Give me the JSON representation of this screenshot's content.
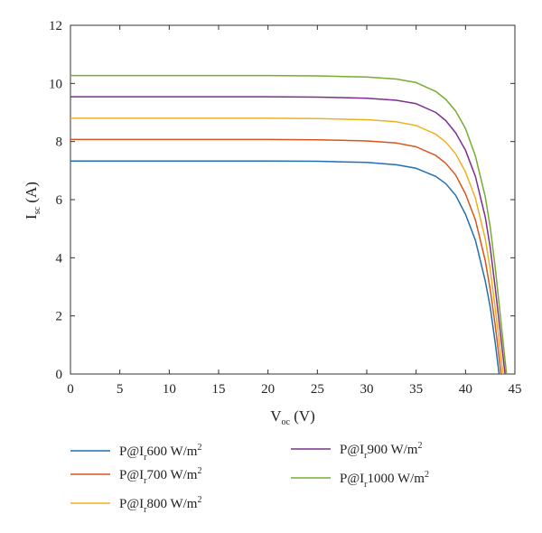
{
  "chart_data": {
    "type": "line",
    "xlabel": {
      "main": "V",
      "sub": "oc",
      "unit": " (V)"
    },
    "ylabel": {
      "main": "I",
      "sub": "sc",
      "unit": " (A)"
    },
    "xlim": [
      0,
      45
    ],
    "ylim": [
      0,
      12
    ],
    "xticks": [
      0,
      5,
      10,
      15,
      20,
      25,
      30,
      35,
      40,
      45
    ],
    "yticks": [
      0,
      2,
      4,
      6,
      8,
      10,
      12
    ],
    "grid": false,
    "legend_position": "bottom",
    "series": [
      {
        "name": "P@Ir600 W/m²",
        "label_pre": "P@I",
        "label_sub": "r",
        "label_post": "600 W/m",
        "label_sup": "2",
        "color": "#1f6fb2",
        "isc": 7.33,
        "voc": 43.4,
        "x": [
          0,
          10,
          20,
          25,
          30,
          33,
          35,
          37,
          38,
          39,
          40,
          41,
          42,
          42.5,
          43,
          43.4
        ],
        "y": [
          7.33,
          7.33,
          7.33,
          7.32,
          7.28,
          7.2,
          7.08,
          6.8,
          6.55,
          6.15,
          5.5,
          4.6,
          3.2,
          2.3,
          1.1,
          0
        ]
      },
      {
        "name": "P@Ir700 W/m²",
        "label_pre": "P@I",
        "label_sub": "r",
        "label_post": "700 W/m",
        "label_sup": "2",
        "color": "#d9541a",
        "isc": 8.07,
        "voc": 43.6,
        "x": [
          0,
          10,
          20,
          25,
          30,
          33,
          35,
          37,
          38,
          39,
          40,
          41,
          42,
          42.5,
          43,
          43.6
        ],
        "y": [
          8.07,
          8.07,
          8.07,
          8.06,
          8.02,
          7.95,
          7.82,
          7.52,
          7.25,
          6.85,
          6.2,
          5.3,
          3.9,
          2.9,
          1.7,
          0
        ]
      },
      {
        "name": "P@Ir800 W/m²",
        "label_pre": "P@I",
        "label_sub": "r",
        "label_post": "800 W/m",
        "label_sup": "2",
        "color": "#edb120",
        "isc": 8.8,
        "voc": 43.8,
        "x": [
          0,
          10,
          20,
          25,
          30,
          33,
          35,
          37,
          38,
          39,
          40,
          41,
          42,
          42.5,
          43,
          43.8
        ],
        "y": [
          8.8,
          8.8,
          8.8,
          8.79,
          8.75,
          8.68,
          8.55,
          8.25,
          7.98,
          7.58,
          6.95,
          6.05,
          4.65,
          3.6,
          2.3,
          0
        ]
      },
      {
        "name": "P@Ir900 W/m²",
        "label_pre": "P@I",
        "label_sub": "r",
        "label_post": "900 W/m",
        "label_sup": "2",
        "color": "#7e2f8e",
        "isc": 9.54,
        "voc": 44.0,
        "x": [
          0,
          10,
          20,
          25,
          30,
          33,
          35,
          37,
          38,
          39,
          40,
          41,
          42,
          42.5,
          43,
          44.0
        ],
        "y": [
          9.54,
          9.54,
          9.54,
          9.53,
          9.49,
          9.42,
          9.3,
          9.0,
          8.72,
          8.3,
          7.7,
          6.8,
          5.4,
          4.35,
          3.0,
          0
        ]
      },
      {
        "name": "P@Ir1000 W/m²",
        "label_pre": "P@I",
        "label_sub": "r",
        "label_post": "1000 W/m",
        "label_sup": "2",
        "color": "#77ac30",
        "isc": 10.27,
        "voc": 44.15,
        "x": [
          0,
          10,
          20,
          25,
          30,
          33,
          35,
          37,
          38,
          39,
          40,
          41,
          42,
          42.5,
          43,
          44.15
        ],
        "y": [
          10.27,
          10.27,
          10.27,
          10.26,
          10.22,
          10.15,
          10.03,
          9.72,
          9.45,
          9.05,
          8.45,
          7.5,
          6.1,
          5.05,
          3.7,
          0
        ]
      }
    ]
  }
}
